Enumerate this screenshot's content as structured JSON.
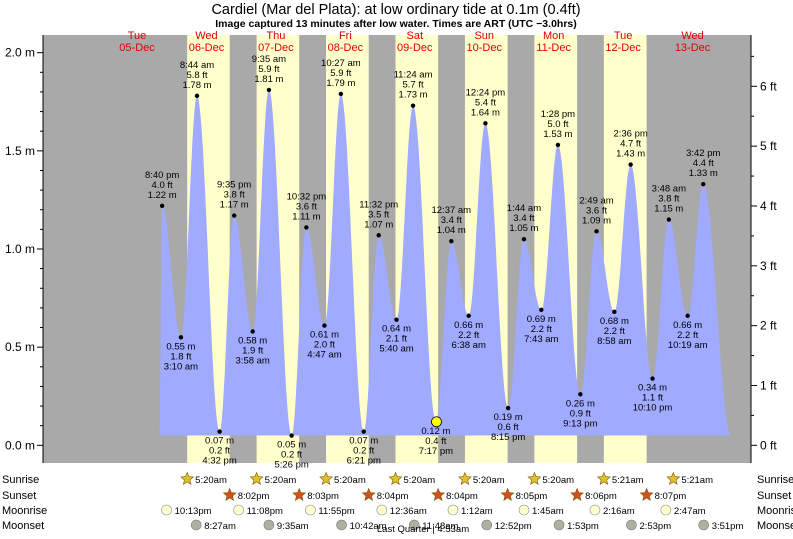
{
  "title": "Cardiel (Mar del Plata): at low  ordinary tide at 0.1m (0.4ft)",
  "subtitle": "Image captured 13 minutes after low water. Times are ART (UTC −3.0hrs)",
  "colors": {
    "water": "#a0aaff",
    "day_band": "#ffffcc",
    "night_band": "#a9a9a9",
    "day_label": "#e00000",
    "sunrise": "#e0c030",
    "sunset": "#d05020",
    "moonrise": "#ffffd0",
    "moonset": "#b0b0a0",
    "now_marker": "#ffff00"
  },
  "chart_data": {
    "type": "area",
    "time_unit": "hours since 00:00 Tue 05-Dec (ART)",
    "ylim_m": [
      -0.09,
      2.09
    ],
    "ylim_ft_ticks": [
      0,
      1,
      2,
      3,
      4,
      5,
      6
    ],
    "y_ticks_m": [
      {
        "value": 0.0,
        "label": "0.0 m"
      },
      {
        "value": 0.5,
        "label": "0.5 m"
      },
      {
        "value": 1.0,
        "label": "1.0 m"
      },
      {
        "value": 1.5,
        "label": "1.5 m"
      },
      {
        "value": 2.0,
        "label": "2.0 m"
      }
    ],
    "y_ticks_ft": [
      {
        "value": 0,
        "label": "0 ft"
      },
      {
        "value": 1,
        "label": "1 ft"
      },
      {
        "value": 2,
        "label": "2 ft"
      },
      {
        "value": 3,
        "label": "3 ft"
      },
      {
        "value": 4,
        "label": "4 ft"
      },
      {
        "value": 5,
        "label": "5 ft"
      },
      {
        "value": 6,
        "label": "6 ft"
      }
    ],
    "x_range_hours": [
      -20.5,
      224.2
    ],
    "days": [
      {
        "name": "Tue",
        "date": "05-Dec",
        "midday": 12
      },
      {
        "name": "Wed",
        "date": "06-Dec",
        "midday": 36
      },
      {
        "name": "Thu",
        "date": "07-Dec",
        "midday": 60
      },
      {
        "name": "Fri",
        "date": "08-Dec",
        "midday": 84
      },
      {
        "name": "Sat",
        "date": "09-Dec",
        "midday": 108
      },
      {
        "name": "Sun",
        "date": "10-Dec",
        "midday": 132
      },
      {
        "name": "Mon",
        "date": "11-Dec",
        "midday": 156
      },
      {
        "name": "Tue",
        "date": "12-Dec",
        "midday": 180
      },
      {
        "name": "Wed",
        "date": "13-Dec",
        "midday": 204
      }
    ],
    "daylight_hours": [
      [
        29.33,
        44.03
      ],
      [
        53.33,
        68.05
      ],
      [
        77.33,
        92.07
      ],
      [
        101.33,
        116.07
      ],
      [
        125.33,
        140.08
      ],
      [
        149.33,
        164.1
      ],
      [
        173.35,
        188.12
      ]
    ],
    "series_start": {
      "t": 19.7,
      "m": 0.05
    },
    "series_end": {
      "t": 217.3,
      "m": 0.05
    },
    "tides": [
      {
        "t": 20.67,
        "m": 1.22,
        "time": "8:40 pm",
        "ft": "4.0 ft",
        "m_label": "1.22 m",
        "type": "high"
      },
      {
        "t": 27.17,
        "m": 0.55,
        "time": "3:10 am",
        "ft": "1.8 ft",
        "m_label": "0.55 m",
        "type": "low"
      },
      {
        "t": 32.73,
        "m": 1.78,
        "time": "8:44 am",
        "ft": "5.8 ft",
        "m_label": "1.78 m",
        "type": "high"
      },
      {
        "t": 40.53,
        "m": 0.07,
        "time": "4:32 pm",
        "ft": "0.2 ft",
        "m_label": "0.07 m",
        "type": "low"
      },
      {
        "t": 45.58,
        "m": 1.17,
        "time": "9:35 pm",
        "ft": "3.8 ft",
        "m_label": "1.17 m",
        "type": "high"
      },
      {
        "t": 51.97,
        "m": 0.58,
        "time": "3:58 am",
        "ft": "1.9 ft",
        "m_label": "0.58 m",
        "type": "low"
      },
      {
        "t": 57.58,
        "m": 1.81,
        "time": "9:35 am",
        "ft": "5.9 ft",
        "m_label": "1.81 m",
        "type": "high"
      },
      {
        "t": 65.43,
        "m": 0.05,
        "time": "5:26 pm",
        "ft": "0.2 ft",
        "m_label": "0.05 m",
        "type": "low"
      },
      {
        "t": 70.53,
        "m": 1.11,
        "time": "10:32 pm",
        "ft": "3.6 ft",
        "m_label": "1.11 m",
        "type": "high"
      },
      {
        "t": 76.78,
        "m": 0.61,
        "time": "4:47 am",
        "ft": "2.0 ft",
        "m_label": "0.61 m",
        "type": "low"
      },
      {
        "t": 82.45,
        "m": 1.79,
        "time": "10:27 am",
        "ft": "5.9 ft",
        "m_label": "1.79 m",
        "type": "high"
      },
      {
        "t": 90.35,
        "m": 0.07,
        "time": "6:21 pm",
        "ft": "0.2 ft",
        "m_label": "0.07 m",
        "type": "low"
      },
      {
        "t": 95.53,
        "m": 1.07,
        "time": "11:32 pm",
        "ft": "3.5 ft",
        "m_label": "1.07 m",
        "type": "high"
      },
      {
        "t": 101.67,
        "m": 0.64,
        "time": "5:40 am",
        "ft": "2.1 ft",
        "m_label": "0.64 m",
        "type": "low"
      },
      {
        "t": 107.4,
        "m": 1.73,
        "time": "11:24 am",
        "ft": "5.7 ft",
        "m_label": "1.73 m",
        "type": "high"
      },
      {
        "t": 115.28,
        "m": 0.12,
        "time": "7:17 pm",
        "ft": "0.4 ft",
        "m_label": "0.12 m",
        "type": "low"
      },
      {
        "t": 120.62,
        "m": 1.04,
        "time": "12:37 am",
        "ft": "3.4 ft",
        "m_label": "1.04 m",
        "type": "high"
      },
      {
        "t": 126.63,
        "m": 0.66,
        "time": "6:38 am",
        "ft": "2.2 ft",
        "m_label": "0.66 m",
        "type": "low"
      },
      {
        "t": 132.4,
        "m": 1.64,
        "time": "12:24 pm",
        "ft": "5.4 ft",
        "m_label": "1.64 m",
        "type": "high"
      },
      {
        "t": 140.25,
        "m": 0.19,
        "time": "8:15 pm",
        "ft": "0.6 ft",
        "m_label": "0.19 m",
        "type": "low"
      },
      {
        "t": 145.73,
        "m": 1.05,
        "time": "1:44 am",
        "ft": "3.4 ft",
        "m_label": "1.05 m",
        "type": "high"
      },
      {
        "t": 151.72,
        "m": 0.69,
        "time": "7:43 am",
        "ft": "2.2 ft",
        "m_label": "0.69 m",
        "type": "low"
      },
      {
        "t": 157.47,
        "m": 1.53,
        "time": "1:28 pm",
        "ft": "5.0 ft",
        "m_label": "1.53 m",
        "type": "high"
      },
      {
        "t": 165.22,
        "m": 0.26,
        "time": "9:13 pm",
        "ft": "0.9 ft",
        "m_label": "0.26 m",
        "type": "low"
      },
      {
        "t": 170.82,
        "m": 1.09,
        "time": "2:49 am",
        "ft": "3.6 ft",
        "m_label": "1.09 m",
        "type": "high"
      },
      {
        "t": 176.97,
        "m": 0.68,
        "time": "8:58 am",
        "ft": "2.2 ft",
        "m_label": "0.68 m",
        "type": "low"
      },
      {
        "t": 182.6,
        "m": 1.43,
        "time": "2:36 pm",
        "ft": "4.7 ft",
        "m_label": "1.43 m",
        "type": "high"
      },
      {
        "t": 190.17,
        "m": 0.34,
        "time": "10:10 pm",
        "ft": "1.1 ft",
        "m_label": "0.34 m",
        "type": "low"
      },
      {
        "t": 195.8,
        "m": 1.15,
        "time": "3:48 am",
        "ft": "3.8 ft",
        "m_label": "1.15 m",
        "type": "high"
      },
      {
        "t": 202.32,
        "m": 0.66,
        "time": "10:19 am",
        "ft": "2.2 ft",
        "m_label": "0.66 m",
        "type": "low"
      },
      {
        "t": 207.7,
        "m": 1.33,
        "time": "3:42 pm",
        "ft": "4.4 ft",
        "m_label": "1.33 m",
        "type": "high"
      }
    ],
    "now": {
      "t": 115.5,
      "m": 0.12
    },
    "rows": {
      "sunrise": {
        "label": "Sunrise",
        "events": [
          {
            "t": 29.33,
            "time": "5:20am"
          },
          {
            "t": 53.33,
            "time": "5:20am"
          },
          {
            "t": 77.33,
            "time": "5:20am"
          },
          {
            "t": 101.33,
            "time": "5:20am"
          },
          {
            "t": 125.33,
            "time": "5:20am"
          },
          {
            "t": 149.33,
            "time": "5:20am"
          },
          {
            "t": 173.35,
            "time": "5:21am"
          },
          {
            "t": 197.35,
            "time": "5:21am"
          }
        ]
      },
      "sunset": {
        "label": "Sunset",
        "events": [
          {
            "t": 44.03,
            "time": "8:02pm"
          },
          {
            "t": 68.05,
            "time": "8:03pm"
          },
          {
            "t": 92.07,
            "time": "8:04pm"
          },
          {
            "t": 116.07,
            "time": "8:04pm"
          },
          {
            "t": 140.08,
            "time": "8:05pm"
          },
          {
            "t": 164.1,
            "time": "8:06pm"
          },
          {
            "t": 188.12,
            "time": "8:07pm"
          }
        ]
      },
      "moonrise": {
        "label": "Moonrise",
        "events": [
          {
            "t": 22.22,
            "time": "10:13pm"
          },
          {
            "t": 47.13,
            "time": "11:08pm"
          },
          {
            "t": 71.92,
            "time": "11:55pm"
          },
          {
            "t": 96.6,
            "time": "12:36am"
          },
          {
            "t": 121.2,
            "time": "1:12am"
          },
          {
            "t": 145.75,
            "time": "1:45am"
          },
          {
            "t": 170.27,
            "time": "2:16am"
          },
          {
            "t": 194.78,
            "time": "2:47am"
          }
        ]
      },
      "moonset": {
        "label": "Moonset",
        "events": [
          {
            "t": 32.45,
            "time": "8:27am"
          },
          {
            "t": 57.58,
            "time": "9:35am"
          },
          {
            "t": 82.7,
            "time": "10:42am"
          },
          {
            "t": 107.8,
            "time": "11:48am"
          },
          {
            "t": 132.87,
            "time": "12:52pm"
          },
          {
            "t": 157.88,
            "time": "1:53pm"
          },
          {
            "t": 182.88,
            "time": "2:53pm"
          },
          {
            "t": 207.85,
            "time": "3:51pm"
          }
        ]
      }
    },
    "moon_phase_note": "Last Quarter | 4:53am"
  }
}
